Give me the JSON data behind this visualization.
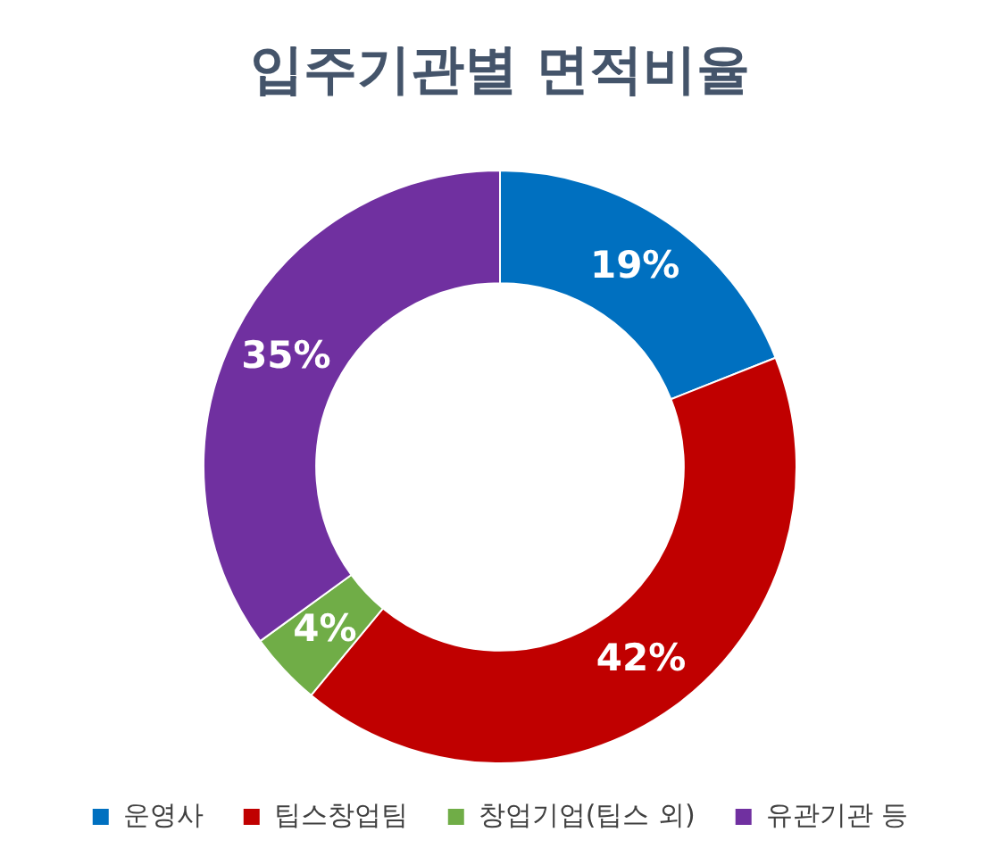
{
  "chart_data": {
    "type": "donut",
    "title": "입주기관별 면적비율",
    "categories": [
      "운영사",
      "팁스창업팀",
      "창업기업(팁스 외)",
      "유관기관 등"
    ],
    "values": [
      19,
      42,
      4,
      35
    ],
    "colors": [
      "#0070c0",
      "#c00000",
      "#70ad47",
      "#7030a0"
    ],
    "value_labels": [
      "19%",
      "42%",
      "4%",
      "35%"
    ],
    "legend": "bottom"
  }
}
